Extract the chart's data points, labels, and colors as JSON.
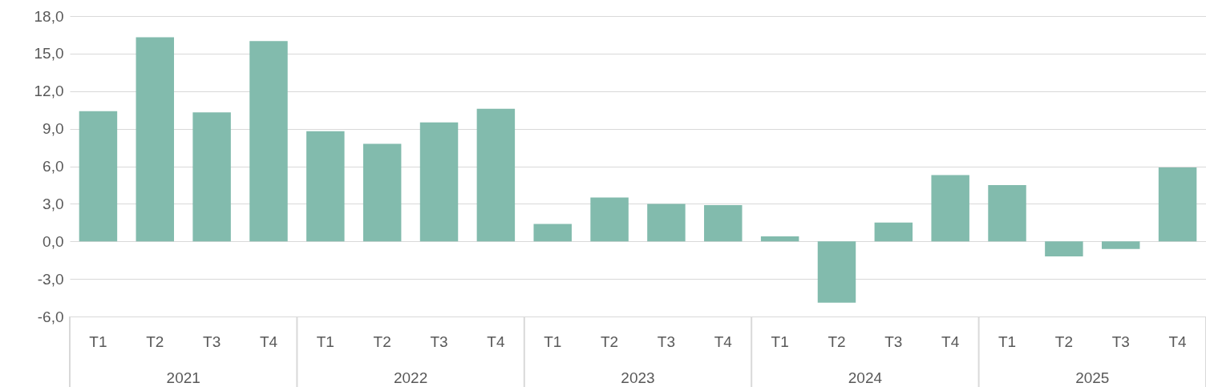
{
  "chart_data": {
    "type": "bar",
    "categories": [
      "T1",
      "T2",
      "T3",
      "T4",
      "T1",
      "T2",
      "T3",
      "T4",
      "T1",
      "T2",
      "T3",
      "T4",
      "T1",
      "T2",
      "T3",
      "T4",
      "T1",
      "T2",
      "T3",
      "T4"
    ],
    "values": [
      10.4,
      16.3,
      10.3,
      16.0,
      8.8,
      7.8,
      9.5,
      10.6,
      1.4,
      3.5,
      3.0,
      2.9,
      0.4,
      -4.9,
      1.5,
      5.3,
      4.5,
      -1.2,
      -0.6,
      5.9
    ],
    "color": "#82bbad",
    "ylim": [
      -6,
      18
    ],
    "yticks": [
      {
        "value": -6,
        "label": "-6,0"
      },
      {
        "value": -3,
        "label": "-3,0"
      },
      {
        "value": 0,
        "label": "0,0"
      },
      {
        "value": 3,
        "label": "3,0"
      },
      {
        "value": 6,
        "label": "6,0"
      },
      {
        "value": 9,
        "label": "9,0"
      },
      {
        "value": 12,
        "label": "12,0"
      },
      {
        "value": 15,
        "label": "15,0"
      },
      {
        "value": 18,
        "label": "18,0"
      }
    ],
    "grid": "y",
    "annotations": [
      "2021",
      "2022",
      "2023",
      "2024",
      "2025"
    ]
  }
}
